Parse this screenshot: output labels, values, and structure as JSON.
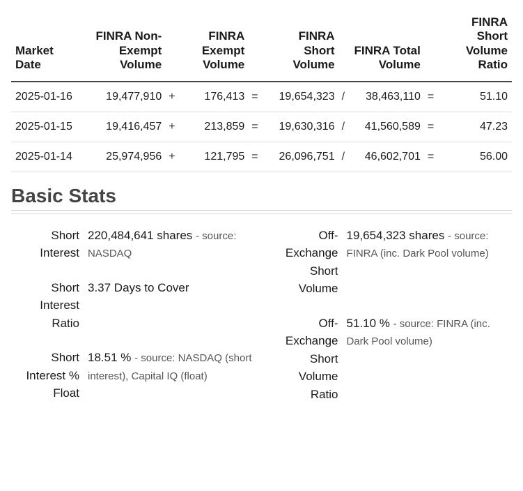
{
  "table": {
    "headers": {
      "market_date": "Market Date",
      "non_exempt": "FINRA Non-Exempt Volume",
      "exempt": "FINRA Exempt Volume",
      "short": "FINRA Short Volume",
      "total": "FINRA Total Volume",
      "ratio": "FINRA Short Volume Ratio"
    },
    "ops": {
      "plus": "+",
      "eq": "=",
      "slash": "/"
    },
    "rows": [
      {
        "date": "2025-01-16",
        "non_exempt": "19,477,910",
        "exempt": "176,413",
        "short": "19,654,323",
        "total": "38,463,110",
        "ratio": "51.10"
      },
      {
        "date": "2025-01-15",
        "non_exempt": "19,416,457",
        "exempt": "213,859",
        "short": "19,630,316",
        "total": "41,560,589",
        "ratio": "47.23"
      },
      {
        "date": "2025-01-14",
        "non_exempt": "25,974,956",
        "exempt": "121,795",
        "short": "26,096,751",
        "total": "46,602,701",
        "ratio": "56.00"
      }
    ]
  },
  "section_title": "Basic Stats",
  "stats": {
    "left": [
      {
        "label": "Short Interest",
        "value": "220,484,641 shares",
        "source": "- source: NASDAQ"
      },
      {
        "label": "Short Interest Ratio",
        "value": "3.37 Days to Cover",
        "source": ""
      },
      {
        "label": "Short Interest % Float",
        "value": "18.51 %",
        "source": "- source: NASDAQ (short interest), Capital IQ (float)"
      }
    ],
    "right": [
      {
        "label": "Off-Exchange Short Volume",
        "value": "19,654,323 shares",
        "source": "- source: FINRA (inc. Dark Pool volume)"
      },
      {
        "label": "Off-Exchange Short Volume Ratio",
        "value": "51.10 %",
        "source": "- source: FINRA (inc. Dark Pool volume)"
      }
    ]
  },
  "colors": {
    "text": "#1a1a1a",
    "header_border": "#444444",
    "row_border": "#dddddd",
    "section_border": "#cccccc",
    "source_text": "#555555",
    "background": "#ffffff"
  }
}
